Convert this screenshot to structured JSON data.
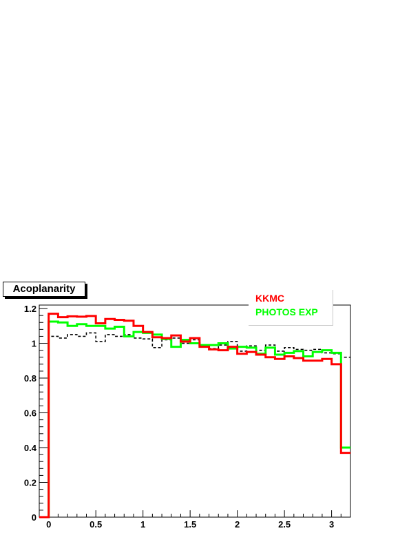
{
  "chart_data": {
    "type": "line",
    "title": "Acoplanarity",
    "xlabel": "",
    "ylabel": "",
    "xlim": [
      -0.1,
      3.2
    ],
    "ylim": [
      0,
      1.22
    ],
    "x_ticks": [
      0,
      0.5,
      1,
      1.5,
      2,
      2.5,
      3
    ],
    "x_tick_labels": [
      "0",
      "0.5",
      "1",
      "1.5",
      "2",
      "2.5",
      "3"
    ],
    "y_ticks": [
      0,
      0.2,
      0.4,
      0.6,
      0.8,
      1,
      1.2
    ],
    "y_tick_labels": [
      "0",
      "0.2",
      "0.4",
      "0.6",
      "0.8",
      "1",
      "1.2"
    ],
    "grid": false,
    "legend_position": "top-right",
    "bin_edges": [
      0,
      0.1,
      0.2,
      0.3,
      0.4,
      0.5,
      0.6,
      0.7,
      0.8,
      0.9,
      1.0,
      1.1,
      1.2,
      1.3,
      1.4,
      1.5,
      1.6,
      1.7,
      1.8,
      1.9,
      2.0,
      2.1,
      2.2,
      2.3,
      2.4,
      2.5,
      2.6,
      2.7,
      2.8,
      2.9,
      3.0,
      3.1,
      3.2
    ],
    "series": [
      {
        "name": "KKMC",
        "color": "#ff0000",
        "style": "solid",
        "values": [
          1.17,
          1.15,
          1.155,
          1.153,
          1.157,
          1.115,
          1.14,
          1.135,
          1.13,
          1.1,
          1.065,
          1.035,
          1.03,
          1.045,
          1.01,
          1.03,
          0.98,
          0.965,
          0.96,
          0.98,
          0.94,
          0.95,
          0.935,
          0.92,
          0.91,
          0.925,
          0.915,
          0.9,
          0.9,
          0.91,
          0.88,
          0.37
        ]
      },
      {
        "name": "PHOTOS EXP",
        "color": "#00ff00",
        "style": "solid",
        "values": [
          1.125,
          1.12,
          1.1,
          1.11,
          1.1,
          1.1,
          1.085,
          1.095,
          1.04,
          1.065,
          1.06,
          1.05,
          1.025,
          0.98,
          1.02,
          1.0,
          0.99,
          0.99,
          1.0,
          0.97,
          0.98,
          0.975,
          0.94,
          0.975,
          0.935,
          0.945,
          0.955,
          0.925,
          0.95,
          0.96,
          0.945,
          0.4
        ]
      },
      {
        "color": "#000000",
        "style": "dashed",
        "values": [
          1.04,
          1.03,
          1.05,
          1.04,
          1.06,
          1.01,
          1.05,
          1.04,
          1.05,
          1.03,
          1.025,
          0.975,
          1.02,
          1.03,
          1.0,
          1.02,
          0.99,
          0.97,
          0.99,
          1.01,
          0.955,
          0.985,
          0.96,
          0.99,
          0.955,
          0.975,
          0.965,
          0.96,
          0.965,
          0.945,
          0.94,
          0.92
        ]
      }
    ]
  }
}
